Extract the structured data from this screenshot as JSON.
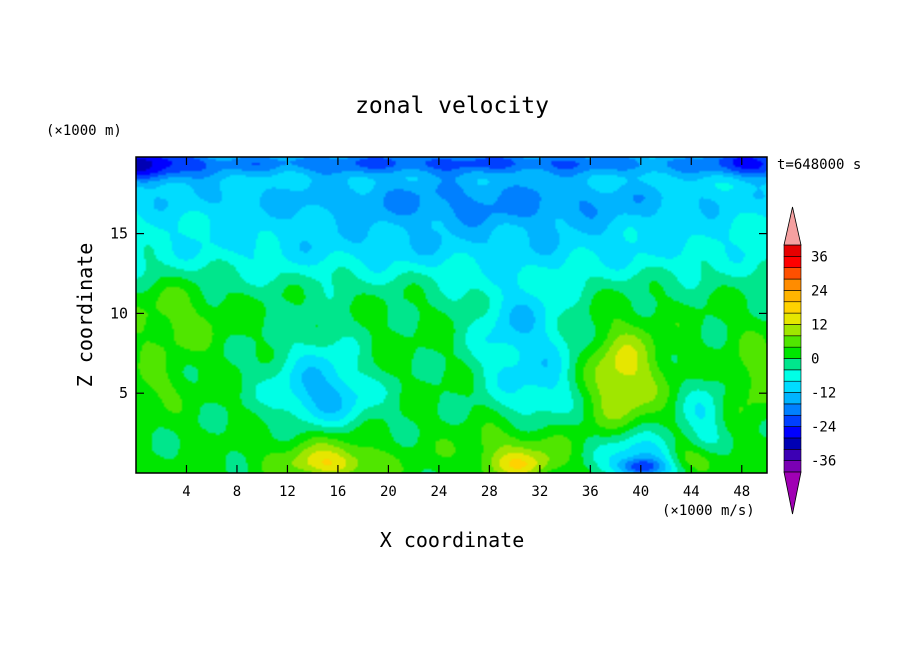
{
  "chart_data": {
    "type": "heatmap",
    "title": "zonal velocity",
    "xlabel": "X coordinate",
    "ylabel": "Z coordinate",
    "x_unit": "(×1000 m/s)",
    "y_unit": "(×1000 m)",
    "time_label": "t=648000 s",
    "xlim": [
      0,
      50
    ],
    "ylim": [
      0,
      19.8
    ],
    "x_ticks": [
      4,
      8,
      12,
      16,
      20,
      24,
      28,
      32,
      36,
      40,
      44,
      48
    ],
    "y_ticks": [
      5,
      10,
      15
    ],
    "colorbar": {
      "levels": [
        -40,
        -36,
        -32,
        -28,
        -24,
        -20,
        -16,
        -12,
        -8,
        -4,
        0,
        4,
        8,
        12,
        16,
        20,
        24,
        28,
        32,
        36,
        40
      ],
      "colors": [
        "#7b00b4",
        "#3c00b4",
        "#0000b4",
        "#0000ff",
        "#0040ff",
        "#0080ff",
        "#00b4ff",
        "#00dcff",
        "#00ffe6",
        "#00e68c",
        "#00e600",
        "#50e600",
        "#a0e600",
        "#e6e600",
        "#ffd200",
        "#ffb400",
        "#ff8c00",
        "#ff5000",
        "#ff0000",
        "#e60000"
      ],
      "low_extend_color": "#a000b4",
      "high_extend_color": "#f5a0a0",
      "tick_labels": [
        "-36",
        "-24",
        "-12",
        "0",
        "12",
        "24",
        "36"
      ]
    },
    "features": [
      {
        "kind": "base",
        "value": 1
      },
      {
        "x": 25,
        "y": 14.5,
        "rx": 40,
        "ry": 2.8,
        "value": -11
      },
      {
        "x": 25,
        "y": 17.2,
        "rx": 40,
        "ry": 1.8,
        "value": -14
      },
      {
        "x": 28,
        "y": 16.8,
        "rx": 12,
        "ry": 1.6,
        "value": -17
      },
      {
        "x": 25,
        "y": 19.4,
        "rx": 36,
        "ry": 1.0,
        "value": -21
      },
      {
        "x": 1,
        "y": 19.3,
        "rx": 5,
        "ry": 1.2,
        "value": -28
      },
      {
        "x": 49,
        "y": 19.4,
        "rx": 4,
        "ry": 1.0,
        "value": -26
      },
      {
        "x": 3,
        "y": 9.5,
        "rx": 4,
        "ry": 2.5,
        "value": 6
      },
      {
        "x": 1.5,
        "y": 5.5,
        "rx": 2.5,
        "ry": 1.5,
        "value": 5
      },
      {
        "x": 15,
        "y": 6,
        "rx": 5,
        "ry": 3.5,
        "value": -8
      },
      {
        "x": 15,
        "y": 5,
        "rx": 3.5,
        "ry": 1.8,
        "value": -14
      },
      {
        "x": 30.5,
        "y": 9,
        "rx": 4,
        "ry": 4.5,
        "value": -12
      },
      {
        "x": 32,
        "y": 6,
        "rx": 3,
        "ry": 3,
        "value": -10
      },
      {
        "x": 38.8,
        "y": 6,
        "rx": 3.2,
        "ry": 3.5,
        "value": 10
      },
      {
        "x": 38.5,
        "y": 6,
        "rx": 1.8,
        "ry": 2.2,
        "value": 14
      },
      {
        "x": 15,
        "y": 1,
        "rx": 5,
        "ry": 1.5,
        "value": 8
      },
      {
        "x": 15.5,
        "y": 0.6,
        "rx": 3,
        "ry": 0.8,
        "value": 15
      },
      {
        "x": 30,
        "y": 1.2,
        "rx": 4.5,
        "ry": 1.8,
        "value": 8
      },
      {
        "x": 30.5,
        "y": 0.6,
        "rx": 2.5,
        "ry": 0.8,
        "value": 15
      },
      {
        "x": 40,
        "y": 1,
        "rx": 3.5,
        "ry": 1.6,
        "value": -12
      },
      {
        "x": 40,
        "y": 0.4,
        "rx": 1.8,
        "ry": 0.6,
        "value": -26
      },
      {
        "x": 44.7,
        "y": 1,
        "rx": 2,
        "ry": 1,
        "value": 10
      },
      {
        "x": 45,
        "y": 3.5,
        "rx": 2,
        "ry": 2.5,
        "value": -7
      },
      {
        "x": 49,
        "y": 6,
        "rx": 2,
        "ry": 3,
        "value": 6
      },
      {
        "x": 20,
        "y": 8,
        "rx": 3,
        "ry": 3,
        "value": 1
      }
    ]
  }
}
